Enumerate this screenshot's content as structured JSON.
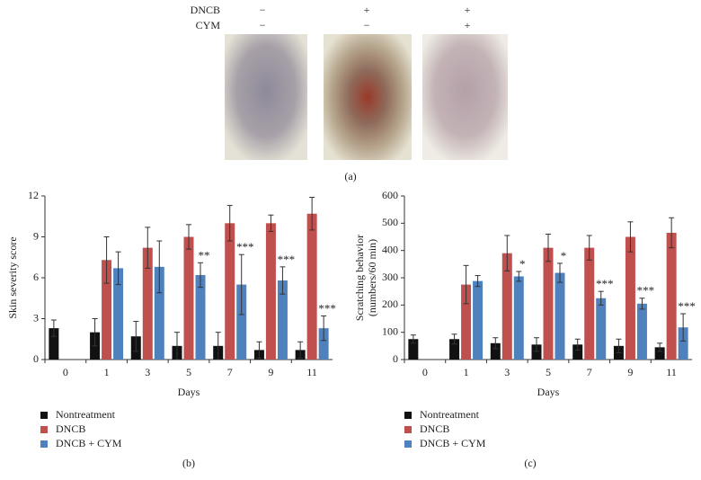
{
  "panel_a": {
    "rows": [
      {
        "label": "DNCB",
        "signs": [
          "−",
          "+",
          "+"
        ]
      },
      {
        "label": "CYM",
        "signs": [
          "−",
          "−",
          "+"
        ]
      }
    ],
    "panel_label": "(a)"
  },
  "chart_data": [
    {
      "type": "bar",
      "panel_label": "(b)",
      "xlabel": "Days",
      "ylabel": [
        "Skin severity score"
      ],
      "categories": [
        "0",
        "1",
        "3",
        "5",
        "7",
        "9",
        "11"
      ],
      "ylim": [
        0,
        12
      ],
      "yticks": [
        0,
        3,
        6,
        9,
        12
      ],
      "series": [
        {
          "name": "Nontreatment",
          "color": "#111111",
          "values": [
            2.3,
            2.0,
            1.7,
            1.0,
            1.0,
            0.7,
            0.7
          ],
          "errors": [
            0.6,
            1.0,
            1.1,
            1.0,
            1.0,
            0.6,
            0.6
          ]
        },
        {
          "name": "DNCB",
          "color": "#c0504d",
          "values": [
            null,
            7.3,
            8.2,
            9.0,
            10.0,
            10.0,
            10.7
          ],
          "errors": [
            null,
            1.7,
            1.5,
            0.9,
            1.3,
            0.6,
            1.2
          ]
        },
        {
          "name": "DNCB + CYM",
          "color": "#4f81bd",
          "values": [
            null,
            6.7,
            6.8,
            6.2,
            5.5,
            5.8,
            2.3
          ],
          "errors": [
            null,
            1.2,
            1.9,
            0.9,
            2.2,
            1.0,
            0.9
          ],
          "annotations": [
            null,
            null,
            null,
            "**",
            "***",
            "***",
            "***"
          ]
        }
      ]
    },
    {
      "type": "bar",
      "panel_label": "(c)",
      "xlabel": "Days",
      "ylabel": [
        "Scratching behavior",
        "(numbers/60 min)"
      ],
      "categories": [
        "0",
        "1",
        "3",
        "5",
        "7",
        "9",
        "11"
      ],
      "ylim": [
        0,
        600
      ],
      "yticks": [
        0,
        100,
        200,
        300,
        400,
        500,
        600
      ],
      "series": [
        {
          "name": "Nontreatment",
          "color": "#111111",
          "values": [
            75,
            75,
            60,
            55,
            55,
            50,
            45
          ],
          "errors": [
            15,
            18,
            20,
            25,
            20,
            25,
            15
          ]
        },
        {
          "name": "DNCB",
          "color": "#c0504d",
          "values": [
            null,
            275,
            390,
            410,
            410,
            450,
            465
          ],
          "errors": [
            null,
            70,
            65,
            50,
            45,
            55,
            55
          ]
        },
        {
          "name": "DNCB + CYM",
          "color": "#4f81bd",
          "values": [
            null,
            288,
            305,
            318,
            225,
            205,
            118
          ],
          "errors": [
            null,
            20,
            18,
            35,
            25,
            20,
            50
          ],
          "annotations": [
            null,
            null,
            "*",
            "*",
            "***",
            "***",
            "***"
          ]
        }
      ]
    }
  ]
}
